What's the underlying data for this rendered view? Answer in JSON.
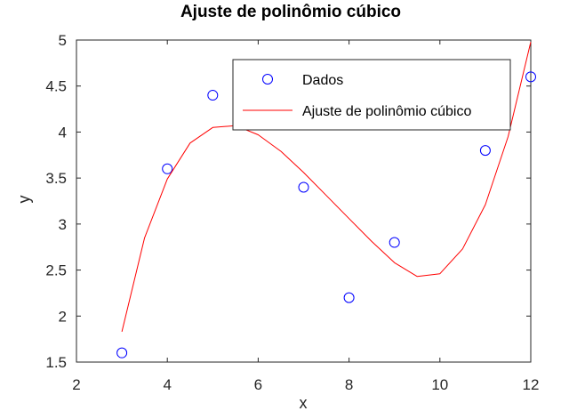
{
  "chart_data": {
    "type": "scatter",
    "title": "Ajuste de polinômio cúbico",
    "xlabel": "x",
    "ylabel": "y",
    "xlim": [
      2,
      12
    ],
    "ylim": [
      1.5,
      5
    ],
    "xticks": [
      2,
      4,
      6,
      8,
      10,
      12
    ],
    "yticks": [
      1.5,
      2,
      2.5,
      3,
      3.5,
      4,
      4.5,
      5
    ],
    "xtick_labels": [
      "2",
      "4",
      "6",
      "8",
      "10",
      "12"
    ],
    "ytick_labels": [
      "1.5",
      "2",
      "2.5",
      "3",
      "3.5",
      "4",
      "4.5",
      "5"
    ],
    "grid": false,
    "legend_position": "top-right",
    "series": [
      {
        "name": "Dados",
        "kind": "markers",
        "marker": "circle",
        "color": "#0000ff",
        "x": [
          3,
          4,
          5,
          7,
          8,
          9,
          11,
          12
        ],
        "y": [
          1.6,
          3.6,
          4.4,
          3.4,
          2.2,
          2.8,
          3.8,
          4.6
        ]
      },
      {
        "name": "Ajuste de polinômio cúbico",
        "kind": "line",
        "color": "#ff0000",
        "x": [
          3,
          3.5,
          4,
          4.5,
          5,
          5.5,
          6,
          6.5,
          7,
          7.5,
          8,
          8.5,
          9,
          9.5,
          10,
          10.5,
          11,
          11.5,
          12
        ],
        "y": [
          1.83,
          2.85,
          3.49,
          3.88,
          4.05,
          4.07,
          3.97,
          3.79,
          3.56,
          3.31,
          3.06,
          2.81,
          2.58,
          2.43,
          2.46,
          2.73,
          3.21,
          3.95,
          4.98
        ]
      }
    ]
  }
}
